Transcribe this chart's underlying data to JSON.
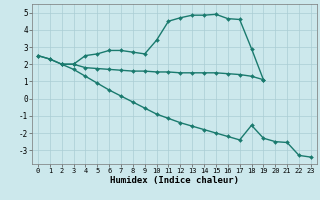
{
  "line1_x": [
    0,
    1,
    2,
    3,
    4,
    5,
    6,
    7,
    8,
    9,
    10,
    11,
    12,
    13,
    14,
    15,
    16,
    17,
    18,
    19
  ],
  "line1_y": [
    2.5,
    2.3,
    2.0,
    2.0,
    2.5,
    2.6,
    2.8,
    2.8,
    2.7,
    2.6,
    3.4,
    4.5,
    4.7,
    4.85,
    4.85,
    4.9,
    4.65,
    4.6,
    2.9,
    1.1
  ],
  "line2_x": [
    0,
    1,
    2,
    3,
    4,
    5,
    6,
    7,
    8,
    9,
    10,
    11,
    12,
    13,
    14,
    15,
    16,
    17,
    18,
    19
  ],
  "line2_y": [
    2.5,
    2.3,
    2.0,
    2.0,
    1.8,
    1.75,
    1.7,
    1.65,
    1.6,
    1.6,
    1.55,
    1.55,
    1.5,
    1.5,
    1.5,
    1.5,
    1.45,
    1.4,
    1.3,
    1.1
  ],
  "line3_x": [
    2,
    3,
    4,
    5,
    6,
    7,
    8,
    9,
    10,
    11,
    12,
    13,
    14,
    15,
    16,
    17,
    18,
    19,
    20,
    21,
    22,
    23
  ],
  "line3_y": [
    2.0,
    1.7,
    1.3,
    0.9,
    0.5,
    0.15,
    -0.2,
    -0.55,
    -0.9,
    -1.15,
    -1.4,
    -1.6,
    -1.8,
    -2.0,
    -2.2,
    -2.4,
    -1.55,
    -2.3,
    -2.5,
    -2.55,
    -3.3,
    -3.4
  ],
  "color": "#1a7a6e",
  "bg_color": "#cce8ec",
  "grid_color": "#aacdd4",
  "xlabel": "Humidex (Indice chaleur)",
  "ylim": [
    -3.8,
    5.5
  ],
  "xlim": [
    -0.5,
    23.5
  ],
  "xticks": [
    0,
    1,
    2,
    3,
    4,
    5,
    6,
    7,
    8,
    9,
    10,
    11,
    12,
    13,
    14,
    15,
    16,
    17,
    18,
    19,
    20,
    21,
    22,
    23
  ],
  "yticks": [
    -3,
    -2,
    -1,
    0,
    1,
    2,
    3,
    4,
    5
  ],
  "marker": "D",
  "markersize": 2.0,
  "linewidth": 1.0
}
